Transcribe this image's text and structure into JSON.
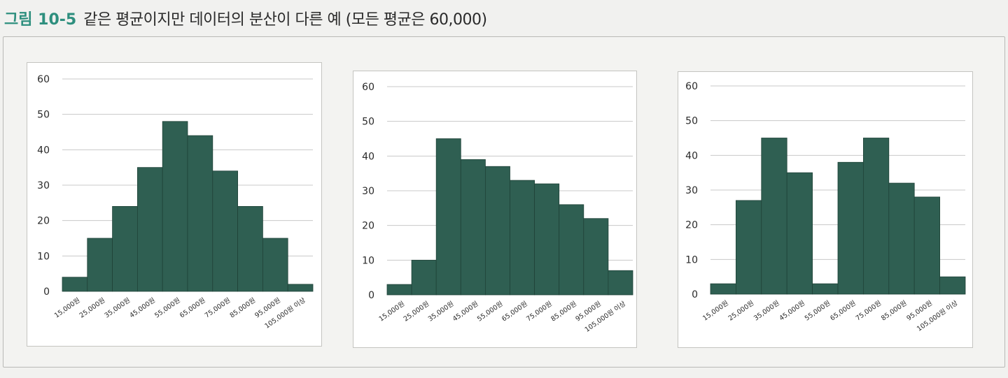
{
  "figure": {
    "label": "그림 10-5",
    "title": "같은 평균이지만 데이터의 분산이 다른 예 (모든 평균은 60,000)"
  },
  "colors": {
    "bar": "#2f5f52",
    "bar_edge": "#1f4238",
    "grid": "#c8c8c8",
    "label": "#2a2a2a",
    "title_accent": "#2e8f7e"
  },
  "chart_data": [
    {
      "type": "bar",
      "categories": [
        "15,000원",
        "25,000원",
        "35,000원",
        "45,000원",
        "55,000원",
        "65,000원",
        "75,000원",
        "85,000원",
        "95,000원",
        "105,000원 이상"
      ],
      "values": [
        4,
        15,
        24,
        35,
        48,
        44,
        34,
        24,
        15,
        2
      ],
      "xlabel": "",
      "ylabel": "",
      "ylim": [
        0,
        60
      ],
      "yticks": [
        0,
        10,
        20,
        30,
        40,
        50,
        60
      ],
      "grid": true,
      "legend": "none"
    },
    {
      "type": "bar",
      "categories": [
        "15,000원",
        "25,000원",
        "35,000원",
        "45,000원",
        "55,000원",
        "65,000원",
        "75,000원",
        "85,000원",
        "95,000원",
        "105,000원 이상"
      ],
      "values": [
        3,
        10,
        45,
        39,
        37,
        33,
        32,
        26,
        22,
        7
      ],
      "xlabel": "",
      "ylabel": "",
      "ylim": [
        0,
        60
      ],
      "yticks": [
        0,
        10,
        20,
        30,
        40,
        50,
        60
      ],
      "grid": true,
      "legend": "none"
    },
    {
      "type": "bar",
      "categories": [
        "15,000원",
        "25,000원",
        "35,000원",
        "45,000원",
        "55,000원",
        "65,000원",
        "75,000원",
        "85,000원",
        "95,000원",
        "105,000원 이상"
      ],
      "values": [
        3,
        27,
        45,
        35,
        3,
        38,
        45,
        32,
        28,
        5
      ],
      "xlabel": "",
      "ylabel": "",
      "ylim": [
        0,
        60
      ],
      "yticks": [
        0,
        10,
        20,
        30,
        40,
        50,
        60
      ],
      "grid": true,
      "legend": "none"
    }
  ]
}
